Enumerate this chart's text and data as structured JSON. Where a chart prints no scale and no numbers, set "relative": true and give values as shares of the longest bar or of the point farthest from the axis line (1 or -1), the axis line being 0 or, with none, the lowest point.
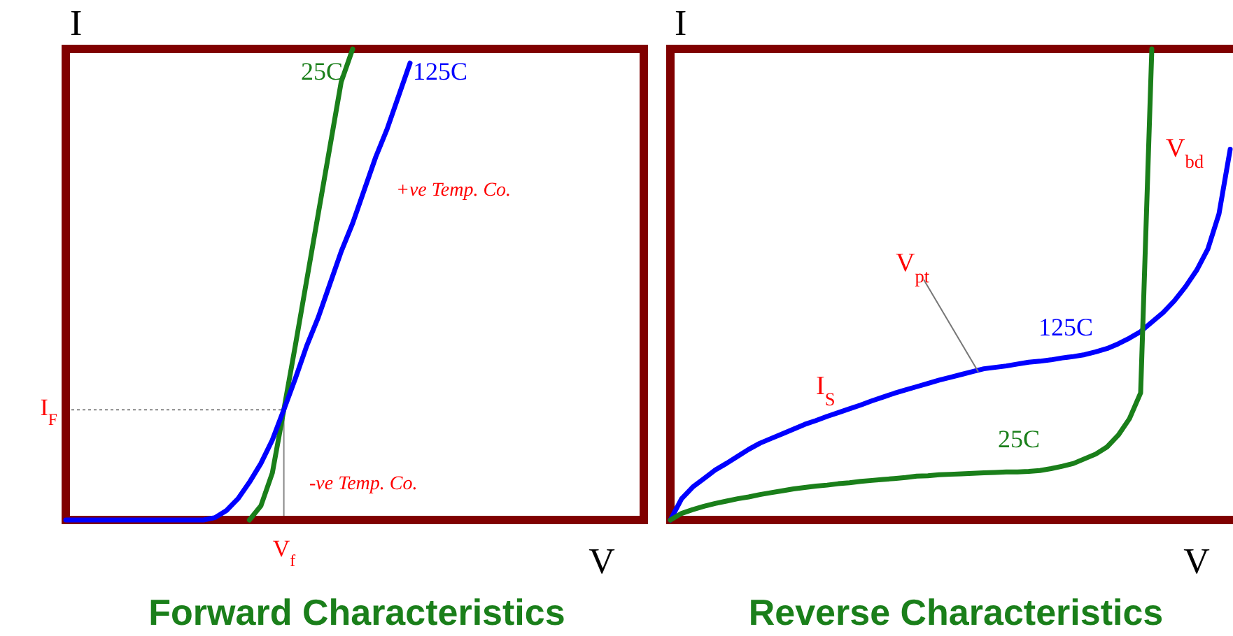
{
  "chart_data": [
    {
      "type": "line",
      "title": "Forward Characteristics",
      "xlabel": "V",
      "ylabel": "I",
      "relative": true,
      "categories": [
        null,
        null,
        null,
        null,
        null,
        null,
        null,
        null,
        null,
        null,
        null,
        null,
        null,
        null,
        null,
        null,
        null,
        null,
        null,
        null,
        null,
        null,
        null,
        null,
        null,
        null,
        null,
        null,
        null,
        null,
        null,
        null,
        null,
        null,
        null,
        null,
        null,
        null,
        null,
        null,
        null,
        null,
        null,
        null,
        null,
        null,
        null,
        null,
        null,
        null,
        null
      ],
      "series": [
        {
          "name": "25C",
          "color": "#1a7f1a",
          "values": [
            null,
            null,
            null,
            null,
            null,
            null,
            null,
            null,
            null,
            null,
            null,
            null,
            null,
            null,
            null,
            null,
            0,
            0.03,
            0.1,
            0.234,
            0.37,
            0.51,
            0.65,
            0.79,
            0.93,
            1.0,
            null,
            null,
            null,
            null,
            null,
            null,
            null,
            null,
            null,
            null,
            null,
            null,
            null,
            null,
            null,
            null,
            null,
            null,
            null,
            null,
            null,
            null,
            null,
            null,
            null
          ]
        },
        {
          "name": "125C",
          "color": "#0000ff",
          "values": [
            0,
            0,
            0,
            0,
            0,
            0,
            0,
            0,
            0,
            0,
            0,
            0,
            0,
            0.005,
            0.02,
            0.045,
            0.08,
            0.12,
            0.17,
            0.234,
            0.3,
            0.37,
            0.43,
            0.5,
            0.57,
            0.63,
            0.7,
            0.77,
            0.83,
            0.9,
            0.97,
            null,
            null,
            null,
            null,
            null,
            null,
            null,
            null,
            null,
            null,
            null,
            null,
            null,
            null,
            null,
            null,
            null,
            null,
            null,
            null
          ]
        }
      ],
      "ref_lines": [
        {
          "axis": "y",
          "value": 0.234,
          "label": "I$_{F}$",
          "line_style": "dotted",
          "color": "#888888"
        }
      ],
      "annotations": [
        "+ve Temp. Co.",
        "-ve Temp. Co.",
        "V$_{f}$"
      ]
    },
    {
      "type": "line",
      "title": "Reverse Characteristics",
      "xlabel": "V",
      "ylabel": "I",
      "relative": true,
      "categories": [
        null,
        null,
        null,
        null,
        null,
        null,
        null,
        null,
        null,
        null,
        null,
        null,
        null,
        null,
        null,
        null,
        null,
        null,
        null,
        null,
        null,
        null,
        null,
        null,
        null,
        null,
        null,
        null,
        null,
        null,
        null,
        null,
        null,
        null,
        null,
        null,
        null,
        null,
        null,
        null,
        null,
        null,
        null,
        null,
        null,
        null,
        null,
        null,
        null,
        null,
        null
      ],
      "series": [
        {
          "name": "125C",
          "color": "#0000ff",
          "values": [
            0,
            0.045,
            0.07,
            0.088,
            0.106,
            0.12,
            0.135,
            0.15,
            0.163,
            0.173,
            0.183,
            0.193,
            0.203,
            0.211,
            0.22,
            0.228,
            0.236,
            0.244,
            0.253,
            0.261,
            0.269,
            0.276,
            0.283,
            0.29,
            0.297,
            0.303,
            0.309,
            0.315,
            0.321,
            0.324,
            0.327,
            0.331,
            0.335,
            0.337,
            0.34,
            0.344,
            0.347,
            0.351,
            0.357,
            0.364,
            0.374,
            0.386,
            0.4,
            0.42,
            0.44,
            0.465,
            0.495,
            0.53,
            0.575,
            0.65,
            0.787
          ]
        },
        {
          "name": "25C",
          "color": "#1a7f1a",
          "values": [
            0,
            0.014,
            0.022,
            0.029,
            0.035,
            0.04,
            0.045,
            0.049,
            0.054,
            0.058,
            0.062,
            0.066,
            0.069,
            0.072,
            0.074,
            0.077,
            0.079,
            0.082,
            0.084,
            0.086,
            0.088,
            0.09,
            0.093,
            0.094,
            0.096,
            0.097,
            0.098,
            0.099,
            0.1,
            0.101,
            0.102,
            0.102,
            0.103,
            0.105,
            0.109,
            0.114,
            0.12,
            0.13,
            0.14,
            0.155,
            0.18,
            0.215,
            0.27,
            1.0,
            null,
            null,
            null,
            null,
            null,
            null,
            null
          ]
        }
      ],
      "annotations": [
        "V$_{pt}$",
        "I$_{S}$",
        "V$_{bd}$"
      ]
    }
  ]
}
